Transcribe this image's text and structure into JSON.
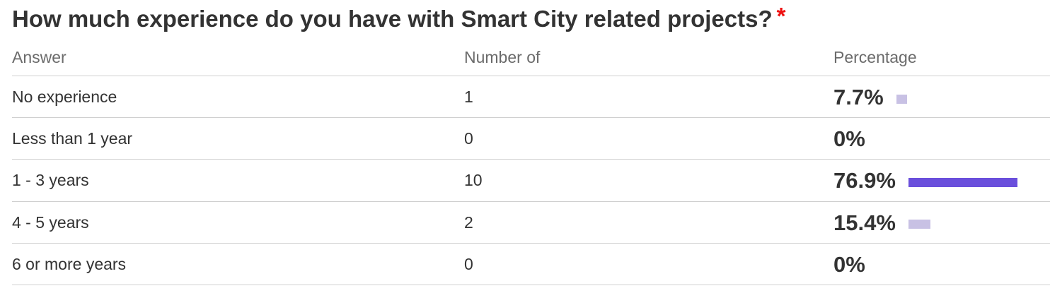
{
  "question": {
    "title": "How much experience do you have with Smart City related projects?",
    "required_marker": "*"
  },
  "table": {
    "headers": {
      "answer": "Answer",
      "count": "Number of",
      "percentage": "Percentage"
    },
    "rows": [
      {
        "answer": "No experience",
        "count": "1",
        "percentage": "7.7%",
        "fraction": 0.077,
        "highlight": false
      },
      {
        "answer": "Less than 1 year",
        "count": "0",
        "percentage": "0%",
        "fraction": 0.0,
        "highlight": false
      },
      {
        "answer": "1 - 3 years",
        "count": "10",
        "percentage": "76.9%",
        "fraction": 0.769,
        "highlight": true
      },
      {
        "answer": "4 - 5 years",
        "count": "2",
        "percentage": "15.4%",
        "fraction": 0.154,
        "highlight": false
      },
      {
        "answer": "6 or more years",
        "count": "0",
        "percentage": "0%",
        "fraction": 0.0,
        "highlight": false
      }
    ]
  },
  "colors": {
    "bar_highlight": "#6a4fdc",
    "bar_normal": "#c8c1e4",
    "required": "#ee1111",
    "text": "#333333",
    "header_text": "#6b6b6b",
    "divider": "#cfcfcf"
  }
}
